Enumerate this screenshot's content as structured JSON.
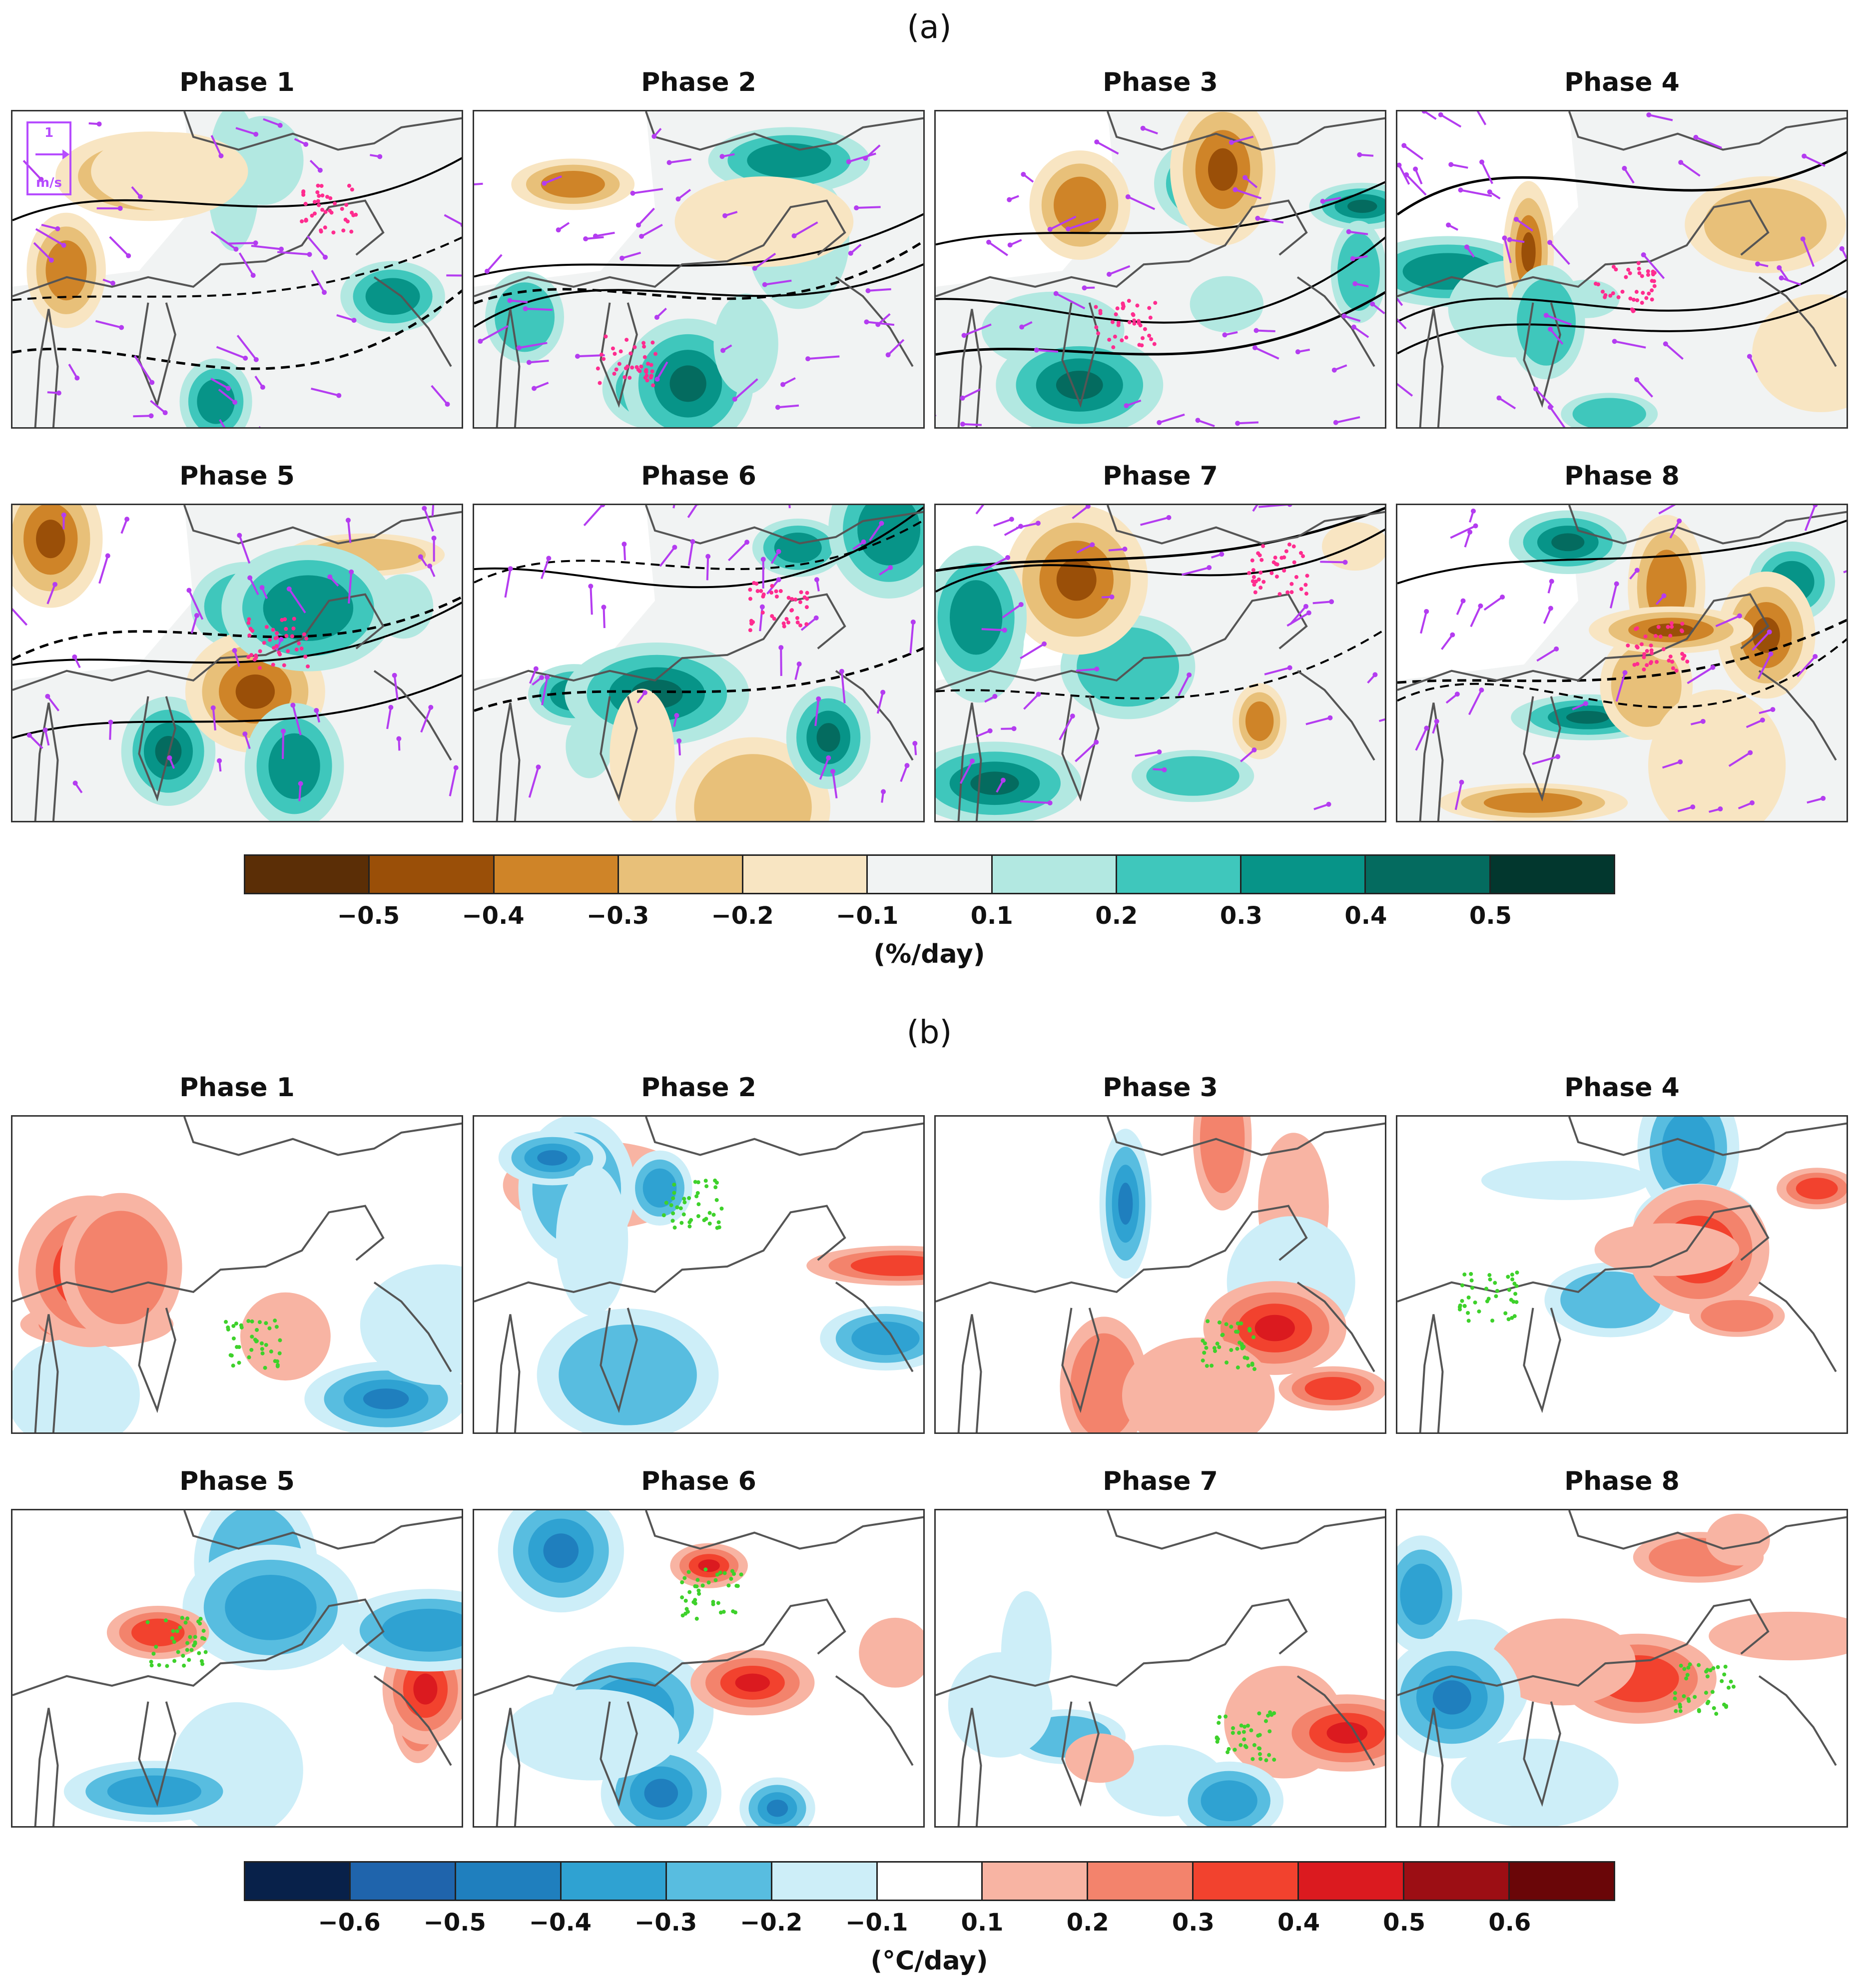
{
  "chart_data": [
    {
      "type": "heatmap",
      "section_label": "(a)",
      "panels": [
        {
          "title": "Phase 1"
        },
        {
          "title": "Phase 2"
        },
        {
          "title": "Phase 3"
        },
        {
          "title": "Phase 4"
        },
        {
          "title": "Phase 5"
        },
        {
          "title": "Phase 6"
        },
        {
          "title": "Phase 7"
        },
        {
          "title": "Phase 8"
        }
      ],
      "vector_legend": {
        "value": "1",
        "unit": "m/s"
      },
      "colorbar": {
        "levels": [
          "−0.5",
          "−0.4",
          "−0.3",
          "−0.2",
          "−0.1",
          "0.1",
          "0.2",
          "0.3",
          "0.4",
          "0.5"
        ],
        "units": "(%/day)",
        "colors": [
          "#5b2e06",
          "#9a4f08",
          "#cf8428",
          "#e8c079",
          "#f8e5c2",
          "#f1f3f3",
          "#b2e8e1",
          "#3fc7bc",
          "#079488",
          "#046b5f",
          "#02372e"
        ]
      },
      "overlays": {
        "vectors_color": "#b43cf0",
        "stipple_color": "#ff2c8f",
        "contours_color": "#000000"
      }
    },
    {
      "type": "heatmap",
      "section_label": "(b)",
      "panels": [
        {
          "title": "Phase 1"
        },
        {
          "title": "Phase 2"
        },
        {
          "title": "Phase 3"
        },
        {
          "title": "Phase 4"
        },
        {
          "title": "Phase 5"
        },
        {
          "title": "Phase 6"
        },
        {
          "title": "Phase 7"
        },
        {
          "title": "Phase 8"
        }
      ],
      "colorbar": {
        "levels": [
          "−0.6",
          "−0.5",
          "−0.4",
          "−0.3",
          "−0.2",
          "−0.1",
          "0.1",
          "0.2",
          "0.3",
          "0.4",
          "0.5",
          "0.6"
        ],
        "units": "(°C/day)",
        "colors": [
          "#08214a",
          "#1f64ac",
          "#1f7fbe",
          "#2fa2d2",
          "#58bde0",
          "#cdeef8",
          "#ffffff",
          "#f8b4a3",
          "#f3836c",
          "#f2422e",
          "#db1a1f",
          "#9c0e14",
          "#6a0608"
        ]
      },
      "overlays": {
        "stipple_color": "#3ed12b"
      }
    }
  ]
}
